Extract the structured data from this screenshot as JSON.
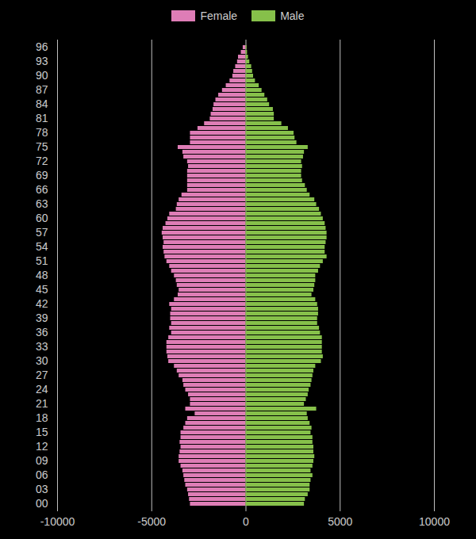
{
  "chart_data": {
    "type": "bar",
    "orientation": "horizontal",
    "legend": "top",
    "grid": true,
    "categories": [
      "00",
      null,
      null,
      "03",
      null,
      null,
      "06",
      null,
      null,
      "09",
      null,
      null,
      "12",
      null,
      null,
      "15",
      null,
      null,
      "18",
      null,
      null,
      "21",
      null,
      null,
      "24",
      null,
      null,
      "27",
      null,
      null,
      "30",
      null,
      null,
      "33",
      null,
      null,
      "36",
      null,
      null,
      "39",
      null,
      null,
      "42",
      null,
      null,
      "45",
      null,
      null,
      "48",
      null,
      null,
      "51",
      null,
      null,
      "54",
      null,
      null,
      "57",
      null,
      null,
      "60",
      null,
      null,
      "63",
      null,
      null,
      "66",
      null,
      null,
      "69",
      null,
      null,
      "72",
      null,
      null,
      "75",
      null,
      null,
      "78",
      null,
      null,
      "81",
      null,
      null,
      "84",
      null,
      null,
      "87",
      null,
      null,
      "90",
      null,
      null,
      "93",
      null,
      null,
      "96"
    ],
    "series": [
      {
        "name": "Female",
        "color": "#de7db6",
        "values": [
          -2950,
          -3000,
          -3050,
          -3100,
          -3200,
          -3250,
          -3300,
          -3350,
          -3450,
          -3550,
          -3550,
          -3500,
          -3450,
          -3500,
          -3450,
          -3450,
          -3300,
          -3200,
          -3100,
          -2700,
          -3200,
          -2950,
          -2950,
          -3050,
          -3200,
          -3300,
          -3350,
          -3550,
          -3650,
          -3800,
          -4100,
          -4150,
          -4200,
          -4200,
          -4200,
          -4100,
          -3950,
          -4050,
          -3950,
          -4000,
          -4000,
          -3950,
          -4050,
          -3800,
          -3600,
          -3550,
          -3650,
          -3700,
          -3800,
          -3950,
          -4050,
          -4200,
          -4300,
          -4350,
          -4400,
          -4350,
          -4400,
          -4450,
          -4400,
          -4250,
          -4150,
          -4050,
          -3700,
          -3650,
          -3550,
          -3400,
          -3100,
          -3100,
          -3100,
          -3100,
          -3100,
          -3050,
          -3100,
          -3300,
          -3350,
          -3600,
          -2950,
          -2950,
          -2950,
          -2550,
          -2200,
          -1900,
          -1850,
          -1750,
          -1700,
          -1600,
          -1450,
          -1250,
          -1050,
          -850,
          -700,
          -650,
          -550,
          -450,
          -400,
          -250,
          -150
        ]
      },
      {
        "name": "Male",
        "color": "#86c04a",
        "values": [
          3100,
          3150,
          3300,
          3400,
          3400,
          3450,
          3550,
          3450,
          3550,
          3600,
          3650,
          3600,
          3600,
          3550,
          3550,
          3450,
          3500,
          3400,
          3300,
          3250,
          3750,
          3100,
          3200,
          3300,
          3350,
          3450,
          3500,
          3550,
          3600,
          3700,
          4000,
          4100,
          4050,
          4050,
          4050,
          4050,
          3950,
          3900,
          3800,
          3800,
          3850,
          3850,
          3800,
          3700,
          3500,
          3600,
          3650,
          3700,
          3700,
          3850,
          3950,
          4100,
          4300,
          4200,
          4200,
          4250,
          4300,
          4300,
          4250,
          4200,
          4100,
          4000,
          3900,
          3750,
          3650,
          3400,
          3250,
          3150,
          3000,
          2950,
          2950,
          3000,
          2950,
          3050,
          3100,
          3300,
          2700,
          2600,
          2550,
          2250,
          1900,
          1500,
          1500,
          1450,
          1250,
          1150,
          1000,
          850,
          700,
          500,
          400,
          350,
          300,
          200,
          130,
          80,
          50
        ]
      }
    ],
    "xlim": [
      -10000,
      10000
    ],
    "xticks": [
      -10000,
      -5000,
      0,
      5000,
      10000
    ]
  }
}
